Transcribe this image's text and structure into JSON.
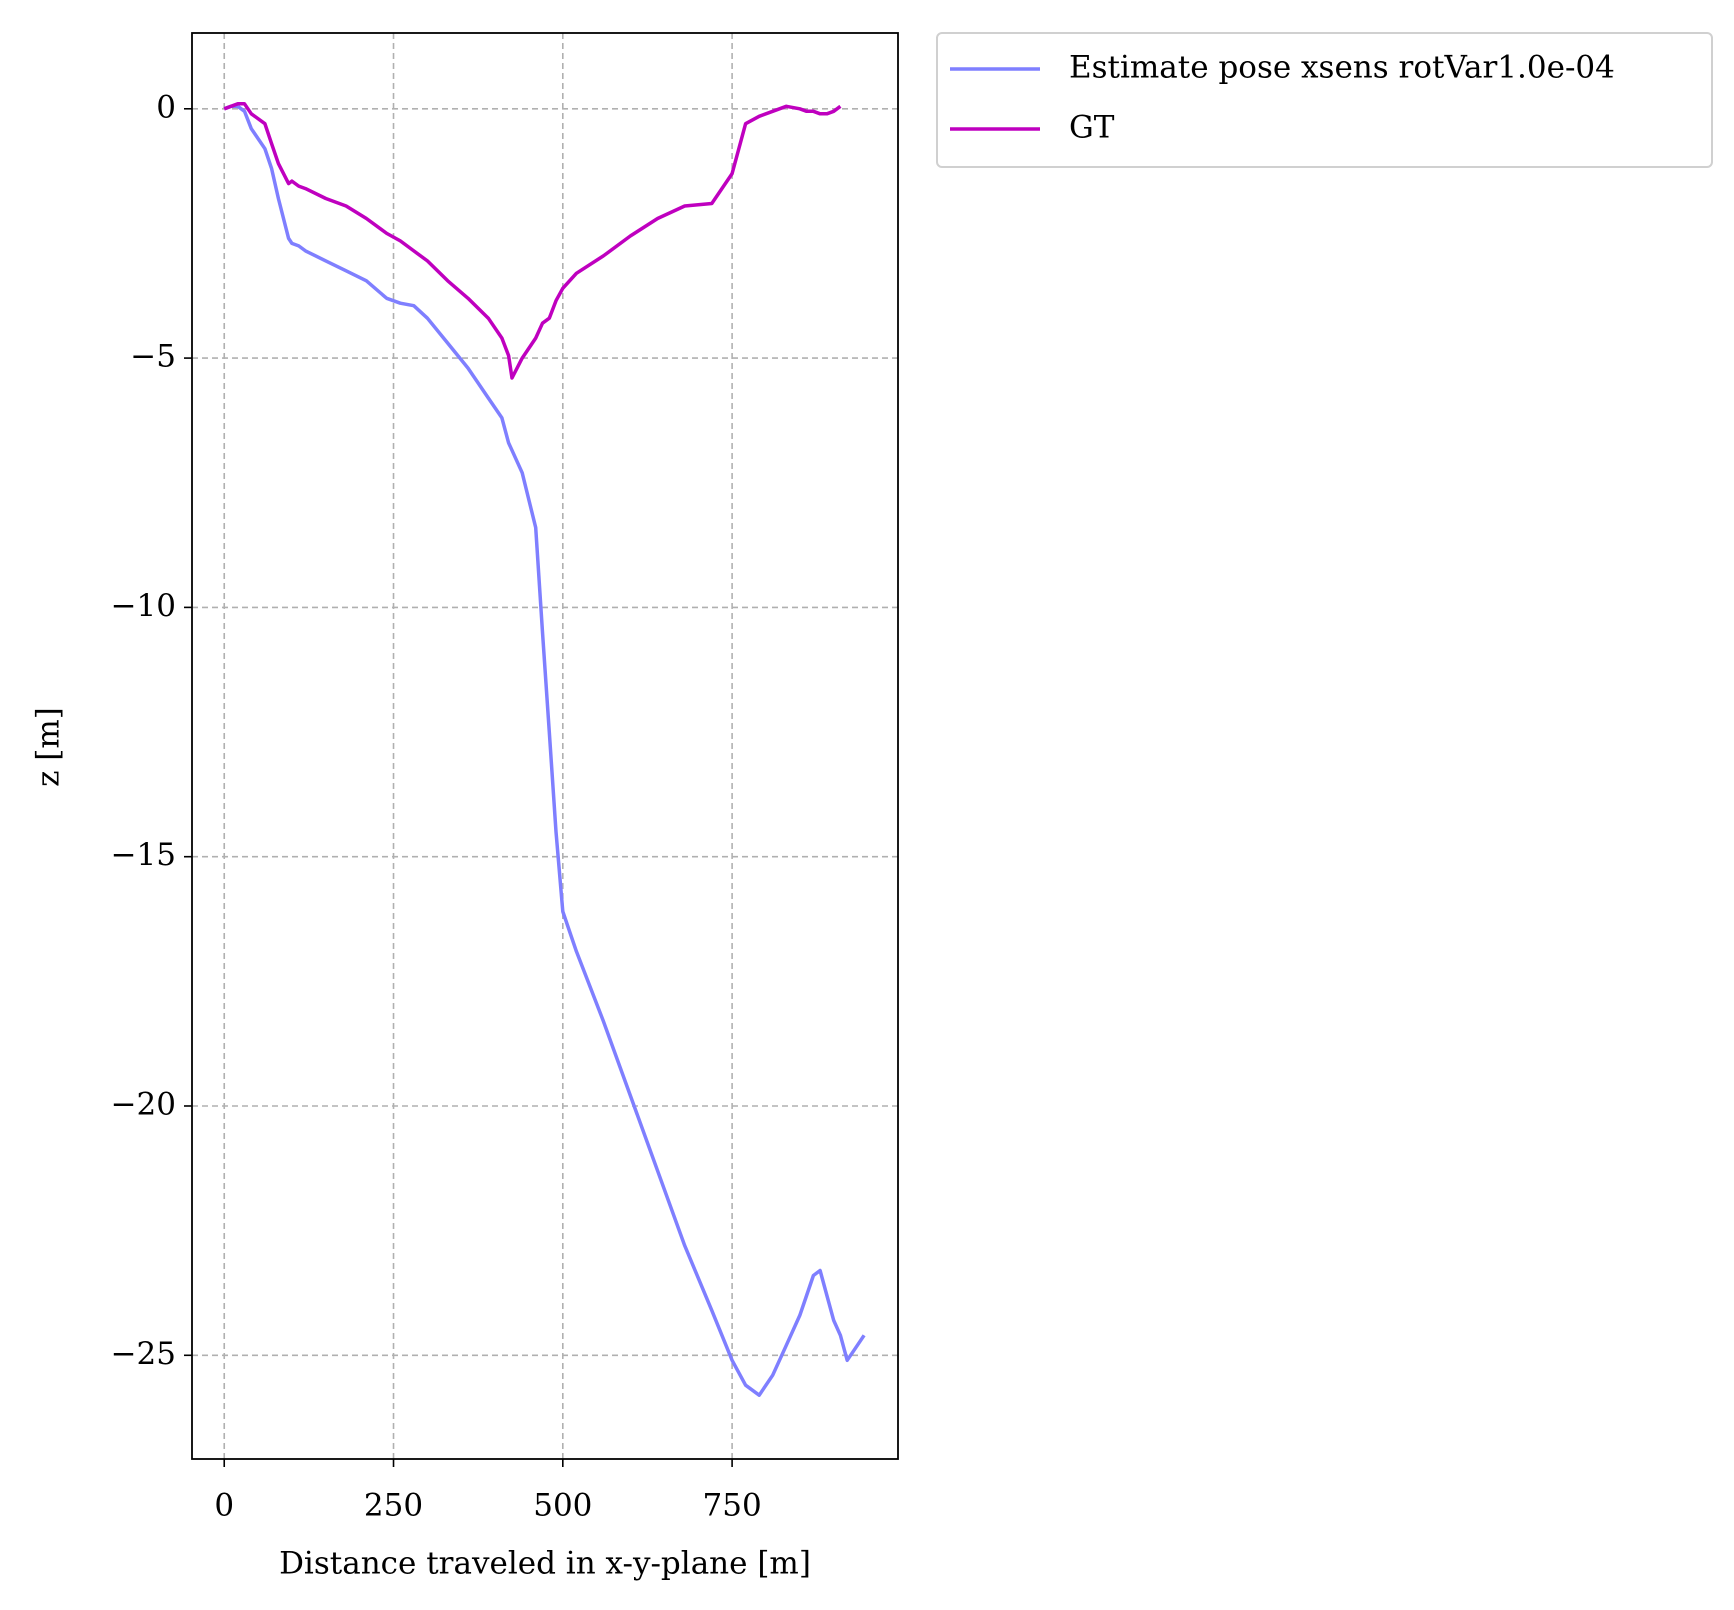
{
  "chart_data": {
    "type": "line",
    "x_label": "Distance traveled in x-y-plane [m]",
    "y_label": "z [m]",
    "x": [
      0,
      10,
      20,
      30,
      40,
      60,
      70,
      80,
      95,
      100,
      110,
      120,
      150,
      180,
      210,
      240,
      260,
      280,
      300,
      330,
      360,
      390,
      410,
      420,
      425,
      440,
      460,
      470,
      480,
      490,
      500,
      520,
      560,
      600,
      640,
      680,
      720,
      750,
      770,
      790,
      810,
      830,
      850,
      860,
      870,
      880,
      890,
      900,
      910,
      920,
      930,
      945
    ],
    "series": [
      {
        "name": "Estimate pose xsens rotVar1.0e-04",
        "color": "#7f7fff",
        "values": [
          0,
          0.05,
          0.05,
          -0.05,
          -0.4,
          -0.8,
          -1.2,
          -1.8,
          -2.6,
          -2.7,
          -2.75,
          -2.85,
          -3.05,
          -3.25,
          -3.45,
          -3.8,
          -3.9,
          -3.95,
          -4.2,
          -4.7,
          -5.2,
          -5.8,
          -6.2,
          -6.7,
          -6.85,
          -7.3,
          -8.4,
          -10.5,
          -12.5,
          -14.5,
          -16.1,
          -16.9,
          -18.3,
          -19.8,
          -21.3,
          -22.8,
          -24.1,
          -25.1,
          -25.6,
          -25.8,
          -25.4,
          -24.8,
          -24.2,
          -23.8,
          -23.4,
          -23.3,
          -23.8,
          -24.3,
          -24.6,
          -25.1,
          -24.9,
          -24.6
        ]
      },
      {
        "name": "GT",
        "color": "#bf00bf",
        "values": [
          0,
          0.05,
          0.1,
          0.1,
          -0.1,
          -0.3,
          -0.7,
          -1.1,
          -1.5,
          -1.45,
          -1.55,
          -1.6,
          -1.8,
          -1.95,
          -2.2,
          -2.5,
          -2.65,
          -2.85,
          -3.05,
          -3.45,
          -3.8,
          -4.2,
          -4.6,
          -4.95,
          -5.4,
          -5.0,
          -4.6,
          -4.3,
          -4.2,
          -3.85,
          -3.6,
          -3.3,
          -2.95,
          -2.55,
          -2.2,
          -1.95,
          -1.9,
          -1.3,
          -0.3,
          -0.15,
          -0.05,
          0.05,
          0,
          -0.05,
          -0.05,
          -0.1,
          -0.1,
          -0.05,
          0.05,
          null,
          null,
          null
        ]
      }
    ],
    "xlim": [
      -47.6,
      995
    ],
    "ylim": [
      -27.08,
      1.52
    ],
    "xticks": [
      0,
      250,
      500,
      750
    ],
    "yticks": [
      0,
      {
        "value": -5,
        "label": "−5"
      },
      {
        "value": -10,
        "label": "−10"
      },
      {
        "value": -15,
        "label": "−15"
      },
      {
        "value": -20,
        "label": "−20"
      },
      {
        "value": -25,
        "label": "−25"
      }
    ],
    "grid": true,
    "legend": "outside-upper-right"
  }
}
